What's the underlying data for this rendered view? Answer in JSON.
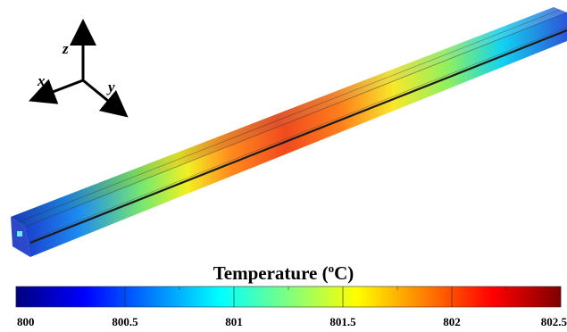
{
  "axes_triad": {
    "x_label": "x",
    "y_label": "y",
    "z_label": "z"
  },
  "colorbar": {
    "title_prefix": "Temperature (",
    "title_sup": "o",
    "title_suffix": "C)",
    "min": 800,
    "max": 802.5,
    "tick_labels": [
      "800",
      "800.5",
      "801",
      "801.5",
      "802",
      "802.5"
    ],
    "tick_values": [
      800,
      800.5,
      801,
      801.5,
      802,
      802.5
    ],
    "colormap": [
      "#00007f",
      "#0000ff",
      "#007fff",
      "#00ffff",
      "#7fff7f",
      "#ffff00",
      "#ff7f00",
      "#ff0000",
      "#7f0000"
    ]
  },
  "bar_profile": {
    "description_colors": [
      "#1340c9",
      "#00c8ff",
      "#f0f020",
      "#ff4a1a",
      "#f6f022",
      "#00c8ff",
      "#2a55cc"
    ]
  }
}
